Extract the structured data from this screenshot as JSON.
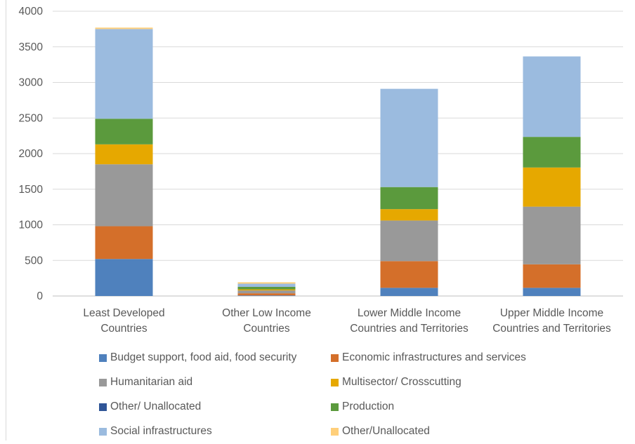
{
  "chart_data": {
    "type": "bar",
    "stacked": true,
    "title": "",
    "xlabel": "",
    "ylabel": "",
    "ylim": [
      0,
      4000
    ],
    "yticks": [
      0,
      500,
      1000,
      1500,
      2000,
      2500,
      3000,
      3500,
      4000
    ],
    "grid": true,
    "legend_position": "bottom",
    "categories": [
      [
        "Least Developed",
        "Countries"
      ],
      [
        "Other Low Income",
        "Countries"
      ],
      [
        "Lower Middle Income",
        "Countries and Territories"
      ],
      [
        "Upper Middle Income",
        "Countries and Territories"
      ]
    ],
    "series": [
      {
        "name": "Budget support, food aid, food security",
        "color": "#4f81bd",
        "values": [
          520,
          8,
          115,
          115
        ]
      },
      {
        "name": "Economic infrastructures and services",
        "color": "#d46f2a",
        "values": [
          460,
          30,
          375,
          330
        ]
      },
      {
        "name": "Humanitarian aid",
        "color": "#999999",
        "values": [
          870,
          40,
          570,
          810
        ]
      },
      {
        "name": "Multisector/ Crosscutting",
        "color": "#e6a800",
        "values": [
          280,
          15,
          160,
          550
        ]
      },
      {
        "name": "Other/ Unallocated",
        "color": "#2f5597",
        "values": [
          0,
          0,
          0,
          0
        ]
      },
      {
        "name": "Production",
        "color": "#5b9a3d",
        "values": [
          360,
          35,
          310,
          430
        ]
      },
      {
        "name": "Social infrastructures",
        "color": "#9bbbdf",
        "values": [
          1260,
          45,
          1380,
          1130
        ]
      },
      {
        "name": "Other/Unallocated",
        "color": "#ffcf7a",
        "values": [
          20,
          20,
          0,
          0
        ]
      }
    ]
  }
}
